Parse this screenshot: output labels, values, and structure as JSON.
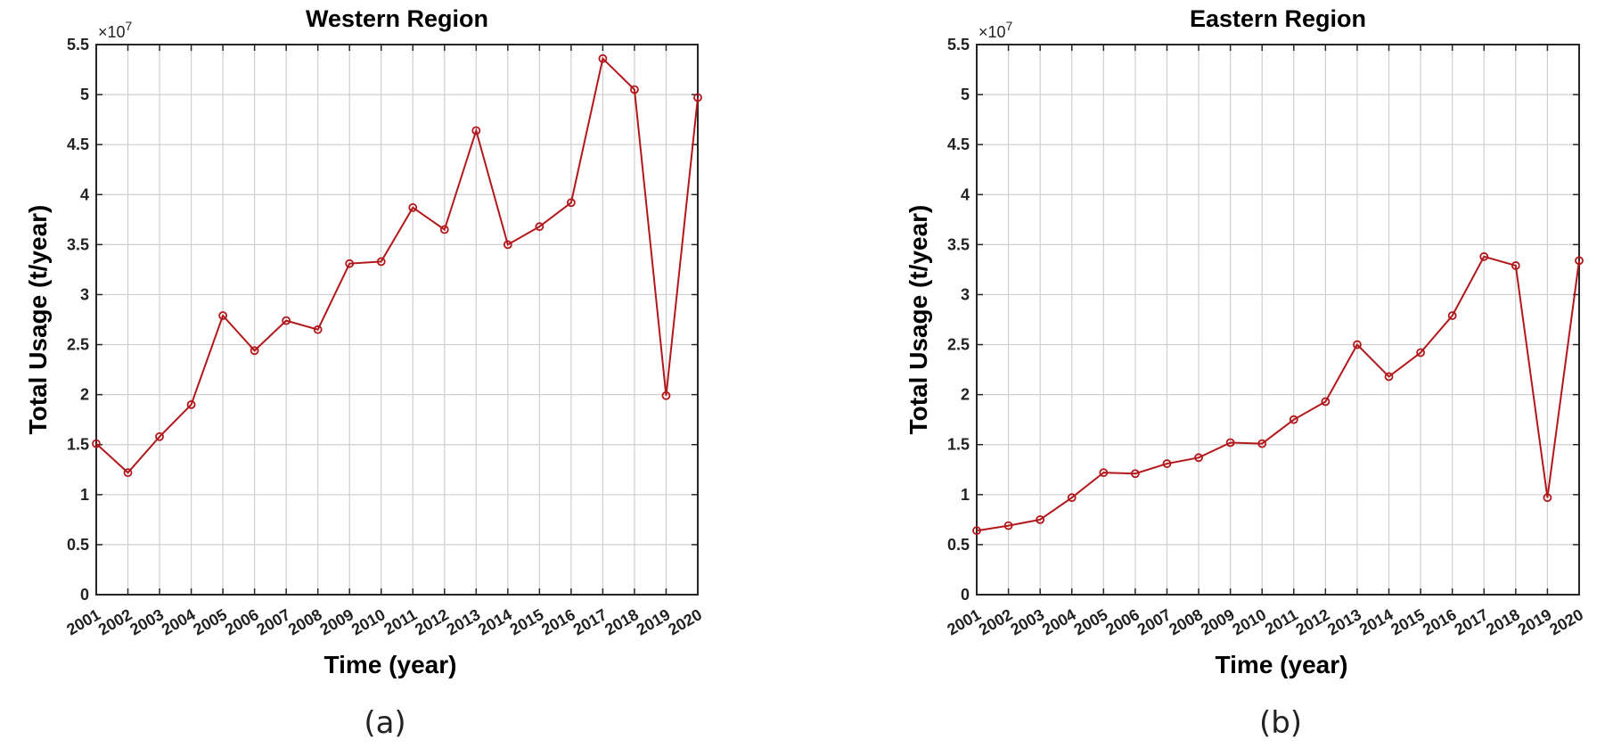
{
  "figure": {
    "colors": {
      "series": "#b2181b",
      "grid": "#cfcfcf",
      "axis": "#262626"
    }
  },
  "chart_data": [
    {
      "type": "line",
      "panel_label": "(a)",
      "title": "Western Region",
      "xlabel": "Time (year)",
      "ylabel": "Total Usage (t/year)",
      "y_exponent_label": "×10",
      "y_exponent_power": "7",
      "y_scale": 10000000,
      "x": [
        "2001",
        "2002",
        "2003",
        "2004",
        "2005",
        "2006",
        "2007",
        "2008",
        "2009",
        "2010",
        "2011",
        "2012",
        "2013",
        "2014",
        "2015",
        "2016",
        "2017",
        "2018",
        "2019",
        "2020"
      ],
      "ylim": [
        0,
        5.5
      ],
      "yticks": [
        "0",
        "0.5",
        "1",
        "1.5",
        "2",
        "2.5",
        "3",
        "3.5",
        "4",
        "4.5",
        "5",
        "5.5"
      ],
      "grid": true,
      "markers": "circle",
      "series": [
        {
          "values": [
            1.51,
            1.22,
            1.58,
            1.9,
            2.79,
            2.44,
            2.74,
            2.65,
            3.31,
            3.33,
            3.87,
            3.65,
            4.64,
            3.5,
            3.68,
            3.92,
            5.36,
            5.05,
            1.99,
            4.97
          ]
        }
      ]
    },
    {
      "type": "line",
      "panel_label": "(b)",
      "title": "Eastern Region",
      "xlabel": "Time (year)",
      "ylabel": "Total Usage (t/year)",
      "y_exponent_label": "×10",
      "y_exponent_power": "7",
      "y_scale": 10000000,
      "x": [
        "2001",
        "2002",
        "2003",
        "2004",
        "2005",
        "2006",
        "2007",
        "2008",
        "2009",
        "2010",
        "2011",
        "2012",
        "2013",
        "2014",
        "2015",
        "2016",
        "2017",
        "2018",
        "2019",
        "2020"
      ],
      "ylim": [
        0,
        5.5
      ],
      "yticks": [
        "0",
        "0.5",
        "1",
        "1.5",
        "2",
        "2.5",
        "3",
        "3.5",
        "4",
        "4.5",
        "5",
        "5.5"
      ],
      "grid": true,
      "markers": "circle",
      "series": [
        {
          "values": [
            0.64,
            0.69,
            0.75,
            0.97,
            1.22,
            1.21,
            1.31,
            1.37,
            1.52,
            1.51,
            1.75,
            1.93,
            2.5,
            2.18,
            2.42,
            2.79,
            3.38,
            3.29,
            0.97,
            3.34
          ]
        }
      ]
    }
  ]
}
